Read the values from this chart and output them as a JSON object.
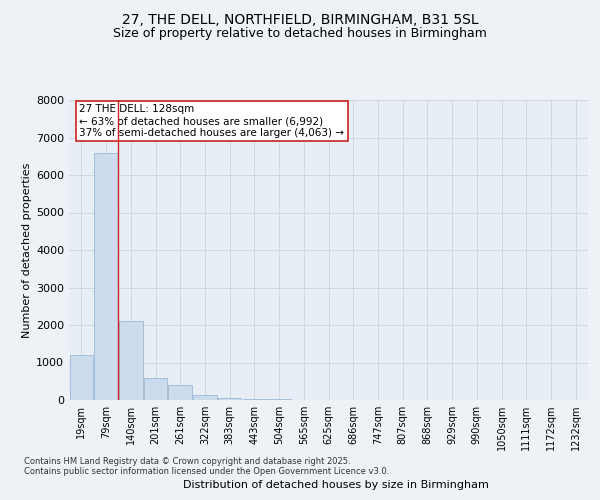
{
  "title_line1": "27, THE DELL, NORTHFIELD, BIRMINGHAM, B31 5SL",
  "title_line2": "Size of property relative to detached houses in Birmingham",
  "xlabel": "Distribution of detached houses by size in Birmingham",
  "ylabel": "Number of detached properties",
  "categories": [
    "19sqm",
    "79sqm",
    "140sqm",
    "201sqm",
    "261sqm",
    "322sqm",
    "383sqm",
    "443sqm",
    "504sqm",
    "565sqm",
    "625sqm",
    "686sqm",
    "747sqm",
    "807sqm",
    "868sqm",
    "929sqm",
    "990sqm",
    "1050sqm",
    "1111sqm",
    "1172sqm",
    "1232sqm"
  ],
  "values": [
    1200,
    6600,
    2100,
    580,
    400,
    130,
    60,
    30,
    20,
    10,
    5,
    3,
    2,
    1,
    1,
    0,
    0,
    0,
    0,
    0,
    0
  ],
  "bar_color": "#ccdcec",
  "bar_edge_color": "#9bbad4",
  "vline_color": "#cc2222",
  "vline_x": 1.5,
  "annotation_text": "27 THE DELL: 128sqm\n← 63% of detached houses are smaller (6,992)\n37% of semi-detached houses are larger (4,063) →",
  "annotation_box_facecolor": "#ffffff",
  "annotation_box_edgecolor": "#cc2222",
  "ylim": [
    0,
    8000
  ],
  "yticks": [
    0,
    1000,
    2000,
    3000,
    4000,
    5000,
    6000,
    7000,
    8000
  ],
  "footer_line1": "Contains HM Land Registry data © Crown copyright and database right 2025.",
  "footer_line2": "Contains public sector information licensed under the Open Government Licence v3.0.",
  "bg_color": "#eef2f7",
  "plot_bg_color": "#e8eef6",
  "grid_color": "#d0d8e4",
  "title_fontsize": 10,
  "subtitle_fontsize": 9,
  "axis_label_fontsize": 8,
  "tick_fontsize": 7,
  "footer_fontsize": 6,
  "annot_fontsize": 7.5
}
